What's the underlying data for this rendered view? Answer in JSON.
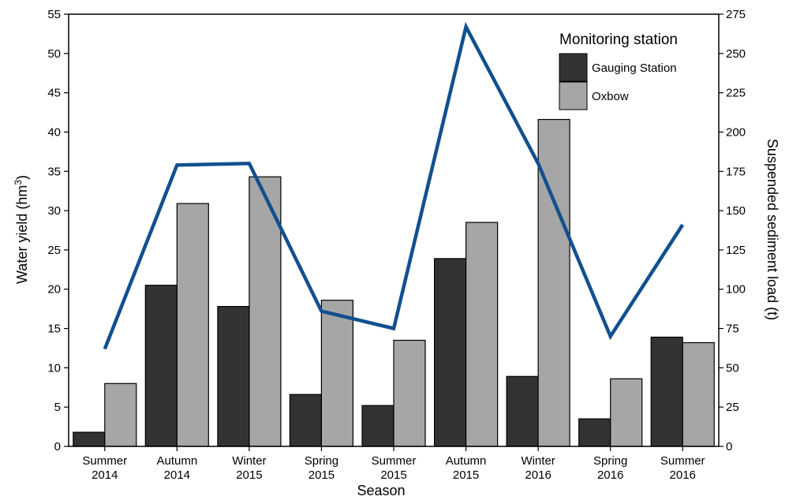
{
  "chart_data": {
    "type": "bar",
    "categories": [
      [
        "Summer",
        "2014"
      ],
      [
        "Autumn",
        "2014"
      ],
      [
        "Winter",
        "2015"
      ],
      [
        "Spring",
        "2015"
      ],
      [
        "Summer",
        "2015"
      ],
      [
        "Autumn",
        "2015"
      ],
      [
        "Winter",
        "2016"
      ],
      [
        "Spring",
        "2016"
      ],
      [
        "Summer",
        "2016"
      ]
    ],
    "series": [
      {
        "name": "Gauging Station",
        "type": "bar",
        "axis": "left",
        "color": "#333333",
        "values": [
          1.8,
          20.5,
          17.8,
          6.6,
          5.2,
          23.9,
          8.9,
          3.5,
          13.9
        ]
      },
      {
        "name": "Oxbow",
        "type": "bar",
        "axis": "left",
        "color": "#a6a6a6",
        "values": [
          8.0,
          30.9,
          34.3,
          18.6,
          13.5,
          28.5,
          41.6,
          8.6,
          13.2
        ]
      },
      {
        "name": "",
        "type": "line",
        "axis": "right",
        "color": "#11508f",
        "values": [
          62,
          179,
          180,
          86,
          75,
          267,
          180,
          70,
          141
        ]
      }
    ],
    "xlabel": "Season",
    "ylabel": "Water yield (hm",
    "ylabel_sup": "3",
    "ylabel_end": ")",
    "y2label": "Suspended sediment load (t)",
    "ylim": [
      0,
      55
    ],
    "y2lim": [
      0,
      275
    ],
    "yticks": [
      "0",
      "5",
      "10",
      "15",
      "20",
      "25",
      "30",
      "35",
      "40",
      "45",
      "50",
      "55"
    ],
    "y2ticks": [
      "0",
      "25",
      "50",
      "75",
      "100",
      "125",
      "150",
      "175",
      "200",
      "225",
      "250",
      "275"
    ],
    "legend": {
      "title": "Monitoring station",
      "placement": "top-right"
    },
    "grid": false
  }
}
